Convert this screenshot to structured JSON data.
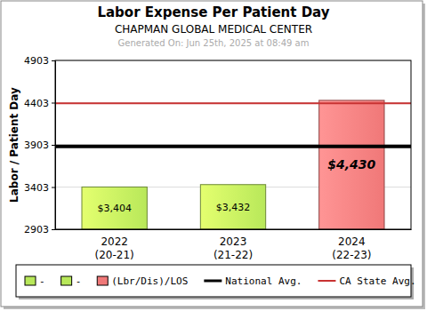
{
  "chart_data": {
    "type": "bar",
    "title": "Labor Expense Per Patient Day",
    "subtitle": "CHAPMAN GLOBAL MEDICAL CENTER",
    "annotation": "Generated On: Jun 25th, 2025 at 08:49 am",
    "ylabel": "Labor / Patient Day",
    "categories": [
      "2022\n(20-21)",
      "2023\n(21-22)",
      "2024\n(22-23)"
    ],
    "series": [
      {
        "name": "-",
        "type": "bar",
        "color": "#b8e85a",
        "values": [
          3404,
          null,
          null
        ],
        "value_labels": [
          "$3,404",
          null,
          null
        ]
      },
      {
        "name": "-",
        "type": "bar",
        "color": "#b8e85a",
        "values": [
          null,
          3432,
          null
        ],
        "value_labels": [
          null,
          "$3,432",
          null
        ]
      },
      {
        "name": "(Lbr/Dis)/LOS",
        "type": "bar",
        "color": "#f07878",
        "values": [
          null,
          null,
          4430
        ],
        "value_labels": [
          null,
          null,
          "$4,430"
        ]
      },
      {
        "name": "National Avg.",
        "type": "line",
        "color": "#000000",
        "values": [
          3885,
          3885,
          3885
        ]
      },
      {
        "name": "CA State Avg.",
        "type": "line",
        "color": "#c83232",
        "values": [
          4395,
          4395,
          4395
        ]
      }
    ],
    "ylim": [
      2903,
      4903
    ],
    "yticks": [
      2903,
      3403,
      3903,
      4403,
      4903
    ],
    "grid": true,
    "legend": "bottom",
    "data_labels": true
  }
}
